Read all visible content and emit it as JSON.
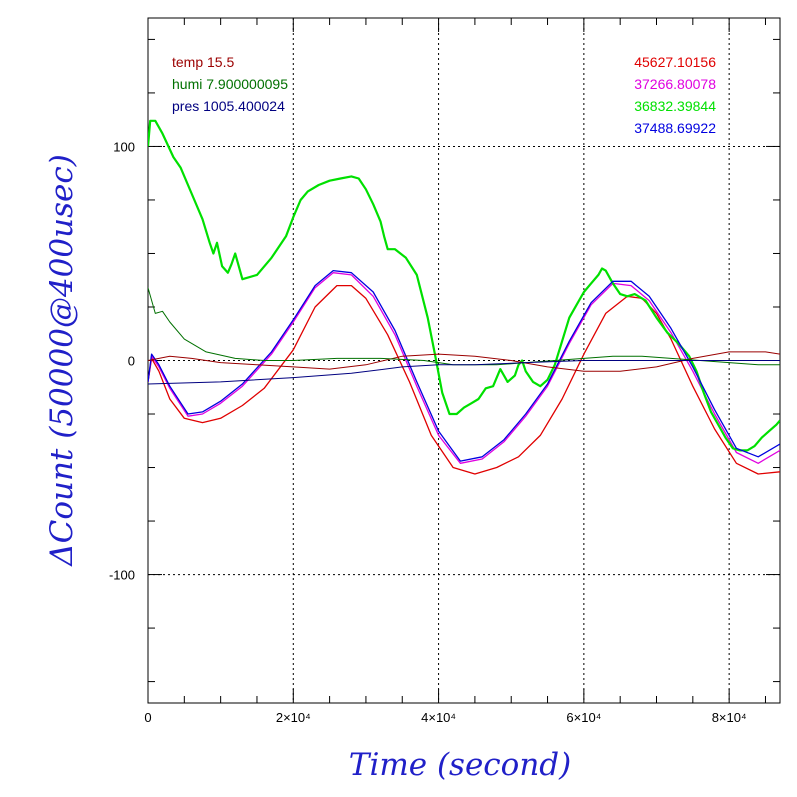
{
  "chart_data": {
    "type": "line",
    "xlabel": "Time (second)",
    "ylabel": "ΔCount (50000@400usec)",
    "xlim": [
      0,
      87000
    ],
    "ylim": [
      -160,
      160
    ],
    "grid": true,
    "x_ticks": [
      {
        "value": 0,
        "label": "0"
      },
      {
        "value": 20000,
        "label": "2×10⁴"
      },
      {
        "value": 40000,
        "label": "4×10⁴"
      },
      {
        "value": 60000,
        "label": "6×10⁴"
      },
      {
        "value": 80000,
        "label": "8×10⁴"
      }
    ],
    "y_ticks": [
      {
        "value": 100,
        "label": "100"
      },
      {
        "value": 0,
        "label": "0"
      },
      {
        "value": -100,
        "label": "-100"
      }
    ],
    "env_legend": [
      {
        "label": "temp 15.5",
        "color": "#9b0000"
      },
      {
        "label": "humi 7.900000095",
        "color": "#007000"
      },
      {
        "label": "pres 1005.400024",
        "color": "#000080"
      }
    ],
    "counts_legend": [
      {
        "label": "45627.10156",
        "color": "#e00000"
      },
      {
        "label": "37266.80078",
        "color": "#e000e0"
      },
      {
        "label": "36832.39844",
        "color": "#00e000"
      },
      {
        "label": "37488.69922",
        "color": "#0000e0"
      }
    ],
    "series": [
      {
        "color": "#e00000",
        "width": 1.3,
        "x": [
          0,
          500,
          1500,
          3000,
          5000,
          7500,
          10000,
          13000,
          16000,
          20000,
          23000,
          26000,
          28000,
          30000,
          33000,
          36000,
          39000,
          42000,
          45000,
          48000,
          51000,
          54000,
          57000,
          60000,
          63000,
          66000,
          68000,
          70000,
          72000,
          75000,
          78000,
          81000,
          84000,
          87000
        ],
        "y": [
          -10,
          1,
          -5,
          -18,
          -27,
          -29,
          -27,
          -21,
          -13,
          5,
          25,
          35,
          35,
          29,
          12,
          -10,
          -35,
          -50,
          -53,
          -50,
          -45,
          -35,
          -18,
          3,
          22,
          30,
          29,
          22,
          10,
          -12,
          -32,
          -48,
          -53,
          -52
        ]
      },
      {
        "color": "#e000e0",
        "width": 1.3,
        "x": [
          0,
          500,
          1500,
          3000,
          5500,
          7500,
          10000,
          13000,
          17000,
          20000,
          23000,
          25500,
          28000,
          31000,
          34000,
          37000,
          40000,
          43000,
          46000,
          49000,
          52000,
          55000,
          58000,
          61000,
          64000,
          66500,
          69000,
          72000,
          75000,
          78000,
          81000,
          84000,
          87000
        ],
        "y": [
          -10,
          2,
          -3,
          -13,
          -26,
          -25,
          -20,
          -12,
          3,
          18,
          34,
          41,
          40,
          30,
          12,
          -12,
          -35,
          -48,
          -46,
          -38,
          -26,
          -12,
          8,
          26,
          36,
          35,
          28,
          13,
          -5,
          -25,
          -43,
          -48,
          -42
        ]
      },
      {
        "color": "#00e000",
        "width": 2.2,
        "x": [
          0,
          300,
          1000,
          2000,
          3500,
          4500,
          6000,
          7500,
          8500,
          9000,
          9500,
          10200,
          11000,
          11500,
          12000,
          12500,
          13000,
          15000,
          17000,
          19000,
          20000,
          21000,
          22000,
          23500,
          25000,
          26500,
          28000,
          29000,
          30000,
          31000,
          32000,
          32500,
          33000,
          34000,
          35500,
          37000,
          38500,
          39500,
          40500,
          41500,
          42500,
          43500,
          44500,
          45500,
          46500,
          47500,
          48500,
          49500,
          50500,
          51000,
          51500,
          52000,
          53000,
          54000,
          55000,
          56000,
          57000,
          58000,
          59000,
          60000,
          61000,
          62000,
          62500,
          63000,
          64000,
          65000,
          66000,
          67000,
          68500,
          70000,
          71500,
          73000,
          74500,
          75500,
          76500,
          77500,
          78500,
          79500,
          80500,
          81500,
          82500,
          83500,
          84500,
          85500,
          86500,
          87000
        ],
        "y": [
          100,
          112,
          112,
          106,
          95,
          90,
          78,
          66,
          55,
          50,
          55,
          44,
          41,
          45,
          50,
          44,
          38,
          40,
          48,
          58,
          67,
          75,
          79,
          82,
          84,
          85,
          86,
          85,
          80,
          73,
          65,
          58,
          52,
          52,
          48,
          40,
          20,
          3,
          -15,
          -25,
          -25,
          -22,
          -20,
          -18,
          -13,
          -12,
          -4,
          -10,
          -7,
          -2,
          0,
          -5,
          -10,
          -12,
          -9,
          -2,
          9,
          20,
          26,
          32,
          36,
          40,
          43,
          42,
          36,
          31,
          30,
          31,
          28,
          20,
          13,
          8,
          2,
          -5,
          -15,
          -24,
          -30,
          -36,
          -41,
          -42,
          -42,
          -40,
          -36,
          -33,
          -30,
          -28
        ]
      },
      {
        "color": "#0000e0",
        "width": 1.3,
        "x": [
          0,
          500,
          1500,
          3000,
          5500,
          7500,
          10000,
          13000,
          17000,
          20000,
          23000,
          25500,
          28000,
          31000,
          34000,
          37000,
          40000,
          43000,
          46000,
          49000,
          52000,
          55000,
          58000,
          61000,
          64000,
          66500,
          69000,
          72000,
          75000,
          78000,
          81000,
          84000,
          87000
        ],
        "y": [
          -10,
          3,
          -2,
          -12,
          -25,
          -24,
          -19,
          -11,
          4,
          19,
          35,
          42,
          41,
          32,
          14,
          -10,
          -33,
          -47,
          -45,
          -37,
          -25,
          -11,
          9,
          27,
          37,
          37,
          30,
          15,
          -3,
          -23,
          -41,
          -45,
          -39
        ]
      },
      {
        "color": "#9b0000",
        "width": 1,
        "x": [
          0,
          3000,
          6000,
          10000,
          15000,
          20000,
          25000,
          30000,
          35000,
          40000,
          45000,
          50000,
          55000,
          60000,
          65000,
          70000,
          75000,
          80000,
          85000,
          87000
        ],
        "y": [
          0,
          2,
          1,
          -1,
          -2,
          -3,
          -4,
          -2,
          2,
          3,
          2,
          0,
          -3,
          -5,
          -5,
          -3,
          1,
          4,
          4,
          3
        ]
      },
      {
        "color": "#007000",
        "width": 1,
        "x": [
          0,
          1000,
          2000,
          3000,
          5000,
          8000,
          12000,
          16000,
          20000,
          26000,
          32000,
          38000,
          42000,
          48000,
          52000,
          56000,
          60000,
          64000,
          68000,
          72000,
          76000,
          80000,
          84000,
          87000
        ],
        "y": [
          34,
          22,
          23,
          18,
          10,
          4,
          1,
          0,
          0,
          1,
          1,
          0,
          -2,
          -2,
          -1,
          0,
          1,
          2,
          2,
          1,
          0,
          -1,
          -2,
          -2
        ]
      },
      {
        "color": "#000080",
        "width": 1,
        "x": [
          0,
          10000,
          20000,
          28000,
          35000,
          40000,
          45000,
          52000,
          60000,
          70000,
          80000,
          87000
        ],
        "y": [
          -11,
          -10,
          -8,
          -6,
          -3,
          -2,
          -2,
          -1,
          0,
          0,
          0,
          0
        ]
      }
    ]
  }
}
